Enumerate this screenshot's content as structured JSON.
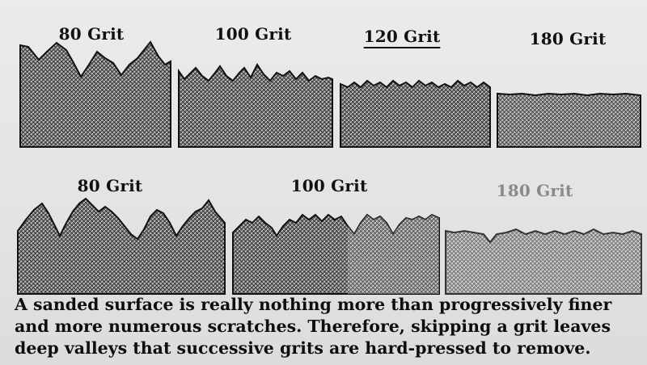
{
  "top_row": [
    {
      "label": "80 Grit",
      "style": "normal",
      "shade": "dark"
    },
    {
      "label": "100 Grit",
      "style": "normal",
      "shade": "dark"
    },
    {
      "label": "120 Grit",
      "style": "underlined",
      "shade": "dark"
    },
    {
      "label": "180 Grit",
      "style": "normal",
      "shade": "dark"
    }
  ],
  "bottom_row": [
    {
      "label": "80 Grit",
      "style": "normal",
      "shade": "dark"
    },
    {
      "label": "100 Grit",
      "style": "normal",
      "shade": "dark"
    },
    {
      "label": "180 Grit",
      "style": "faded",
      "shade": "light"
    }
  ],
  "caption_lines": [
    "A sanded surface is really nothing more than progressively finer",
    "and more numerous scratches. Therefore, skipping a grit leaves",
    "deep valleys that successive grits are hard-pressed to remove."
  ],
  "colors": {
    "background": "#e6e6e6",
    "block_dark": "#5a5a5a",
    "block_light": "#8c8c8c",
    "faded_label": "#8a8a8a",
    "text": "#111111"
  }
}
